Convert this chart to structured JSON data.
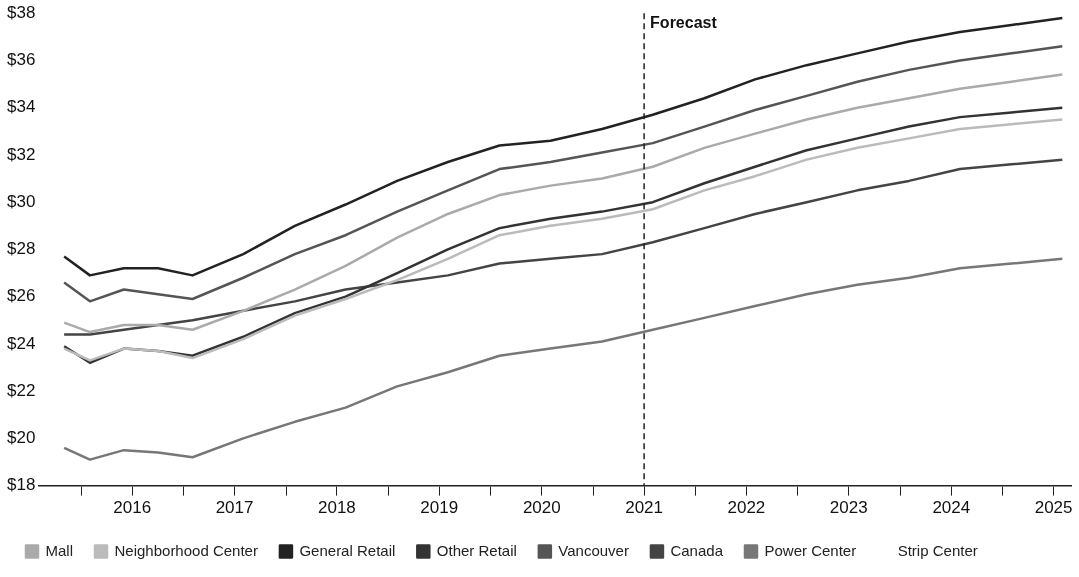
{
  "chart_data": {
    "type": "line",
    "x": [
      "2015-11",
      "2016-02",
      "2016-06",
      "2016-10",
      "2017-02",
      "2017-08",
      "2018-02",
      "2018-08",
      "2019-02",
      "2019-08",
      "2020-02",
      "2020-08",
      "2021-02",
      "2021-08",
      "2022-02",
      "2022-08",
      "2023-02",
      "2023-08",
      "2024-02",
      "2024-08",
      "2025-02",
      "2025-08"
    ],
    "series": [
      {
        "name": "Mall",
        "color": "#aaaaaa",
        "values": [
          24.9,
          24.5,
          24.8,
          24.8,
          24.6,
          25.4,
          26.3,
          27.3,
          28.5,
          29.5,
          30.3,
          30.7,
          31.0,
          31.5,
          32.3,
          32.9,
          33.5,
          34.0,
          34.4,
          34.8,
          35.1,
          35.4
        ]
      },
      {
        "name": "Neighborhood Center",
        "color": "#bbbbbb",
        "values": [
          23.8,
          23.3,
          23.8,
          23.7,
          23.4,
          24.2,
          25.2,
          25.9,
          26.7,
          27.6,
          28.6,
          29.0,
          29.3,
          29.7,
          30.5,
          31.1,
          31.8,
          32.3,
          32.7,
          33.1,
          33.3,
          33.5
        ]
      },
      {
        "name": "General Retail",
        "color": "#222222",
        "values": [
          27.7,
          26.9,
          27.2,
          27.2,
          26.9,
          27.8,
          29.0,
          29.9,
          30.9,
          31.7,
          32.4,
          32.6,
          33.1,
          33.7,
          34.4,
          35.2,
          35.8,
          36.3,
          36.8,
          37.2,
          37.5,
          37.8
        ]
      },
      {
        "name": "Other Retail",
        "color": "#333333",
        "values": [
          23.9,
          23.2,
          23.8,
          23.7,
          23.5,
          24.3,
          25.3,
          26.0,
          27.0,
          28.0,
          28.9,
          29.3,
          29.6,
          30.0,
          30.8,
          31.5,
          32.2,
          32.7,
          33.2,
          33.6,
          33.8,
          34.0
        ]
      },
      {
        "name": "Vancouver",
        "color": "#555555",
        "values": [
          26.6,
          25.8,
          26.3,
          26.1,
          25.9,
          26.8,
          27.8,
          28.6,
          29.6,
          30.5,
          31.4,
          31.7,
          32.1,
          32.5,
          33.2,
          33.9,
          34.5,
          35.1,
          35.6,
          36.0,
          36.3,
          36.6
        ]
      },
      {
        "name": "Canada",
        "color": "#444444",
        "values": [
          24.4,
          24.4,
          24.6,
          24.8,
          25.0,
          25.4,
          25.8,
          26.3,
          26.6,
          26.9,
          27.4,
          27.6,
          27.8,
          28.3,
          28.9,
          29.5,
          30.0,
          30.5,
          30.9,
          31.4,
          31.6,
          31.8
        ]
      },
      {
        "name": "Power Center",
        "color": "#777777",
        "values": [
          19.6,
          19.1,
          19.5,
          19.4,
          19.2,
          20.0,
          20.7,
          21.3,
          22.2,
          22.8,
          23.5,
          23.8,
          24.1,
          24.6,
          25.1,
          25.6,
          26.1,
          26.5,
          26.8,
          27.2,
          27.4,
          27.6
        ]
      },
      {
        "name": "Strip Center",
        "values": [
          null,
          null,
          null,
          null,
          null,
          null,
          null,
          null,
          null,
          null,
          null,
          null,
          null,
          null,
          null,
          null,
          null,
          null,
          null,
          null,
          null,
          null
        ]
      }
    ],
    "xlim": [
      "2015-08",
      "2025-09"
    ],
    "xticks": [
      {
        "value": "2016-01",
        "label": null
      },
      {
        "value": "2016-07",
        "label": "2016"
      },
      {
        "value": "2017-01",
        "label": null
      },
      {
        "value": "2017-07",
        "label": "2017"
      },
      {
        "value": "2018-01",
        "label": null
      },
      {
        "value": "2018-07",
        "label": "2018"
      },
      {
        "value": "2019-01",
        "label": null
      },
      {
        "value": "2019-07",
        "label": "2019"
      },
      {
        "value": "2020-01",
        "label": null
      },
      {
        "value": "2020-07",
        "label": "2020"
      },
      {
        "value": "2021-01",
        "label": null
      },
      {
        "value": "2021-07",
        "label": "2021"
      },
      {
        "value": "2022-01",
        "label": null
      },
      {
        "value": "2022-07",
        "label": "2022"
      },
      {
        "value": "2023-01",
        "label": null
      },
      {
        "value": "2023-07",
        "label": "2023"
      },
      {
        "value": "2024-01",
        "label": null
      },
      {
        "value": "2024-07",
        "label": "2024"
      },
      {
        "value": "2025-01",
        "label": null
      },
      {
        "value": "2025-07",
        "label": "2025"
      }
    ],
    "ylim": [
      18,
      38
    ],
    "yticks": [
      {
        "value": 18,
        "label": "$18"
      },
      {
        "value": 20,
        "label": "$20"
      },
      {
        "value": 22,
        "label": "$22"
      },
      {
        "value": 24,
        "label": "$24"
      },
      {
        "value": 26,
        "label": "$26"
      },
      {
        "value": 28,
        "label": "$28"
      },
      {
        "value": 30,
        "label": "$30"
      },
      {
        "value": 32,
        "label": "$32"
      },
      {
        "value": 34,
        "label": "$34"
      },
      {
        "value": 36,
        "label": "$36"
      },
      {
        "value": 38,
        "label": "$38"
      }
    ],
    "ref_lines": [
      {
        "axis": "x",
        "value": "2021-07",
        "label": "Forecast",
        "color": "#222222",
        "line_style": "dashed"
      }
    ],
    "grid": false,
    "legend": "bottom",
    "marker": "none",
    "line_style": "solid"
  }
}
